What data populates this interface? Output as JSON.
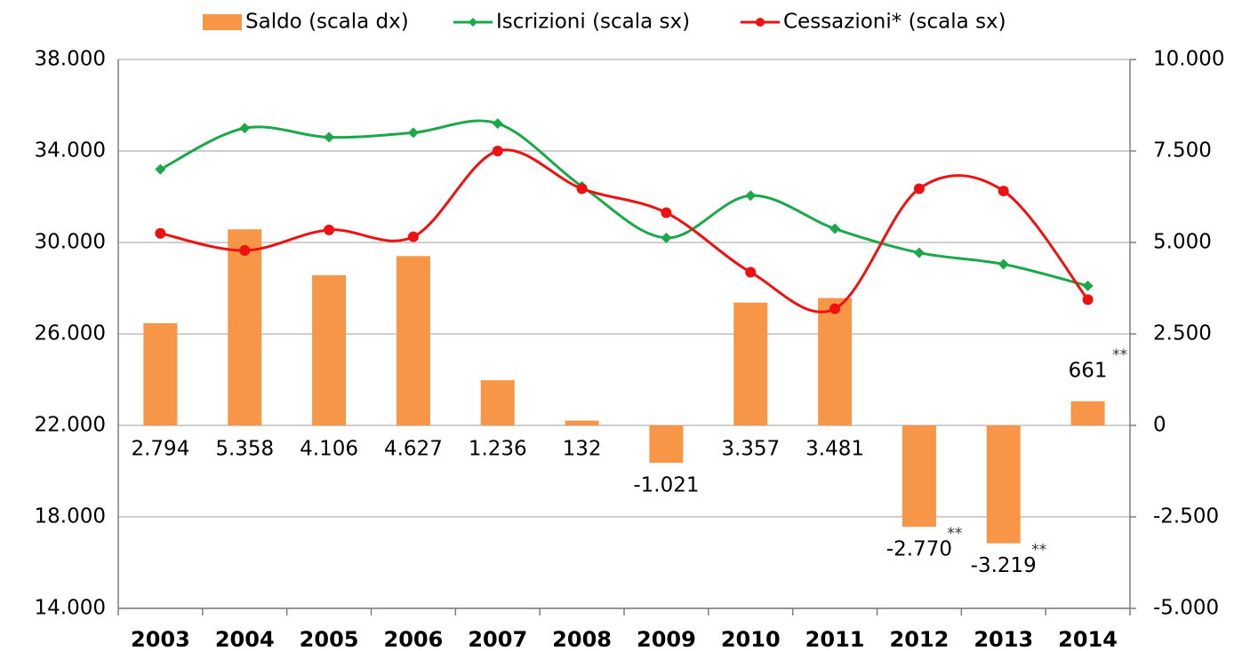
{
  "chart_data": {
    "type": "bar_line",
    "categories": [
      "2003",
      "2004",
      "2005",
      "2006",
      "2007",
      "2008",
      "2009",
      "2010",
      "2011",
      "2012",
      "2013",
      "2014"
    ],
    "series": [
      {
        "name": "Saldo (scala dx)",
        "type": "bar",
        "axis": "y2",
        "color": "#f79646",
        "values": [
          2794,
          5358,
          4106,
          4627,
          1236,
          132,
          -1021,
          3357,
          3481,
          -2770,
          -3219,
          661
        ],
        "value_labels": [
          "2.794",
          "5.358",
          "4.106",
          "4.627",
          "1.236",
          "132",
          "-1.021",
          "3.357",
          "3.481",
          "-2.770",
          "-3.219",
          "661"
        ],
        "value_notes": [
          null,
          null,
          null,
          null,
          null,
          null,
          null,
          null,
          null,
          "**",
          "**",
          "**"
        ]
      },
      {
        "name": "Iscrizioni (scala sx)",
        "type": "line",
        "marker": "diamond",
        "color": "#1aa84a",
        "values": [
          33200,
          35000,
          34600,
          34800,
          35200,
          32450,
          30200,
          32050,
          30600,
          29550,
          29050,
          28100
        ]
      },
      {
        "name": "Cessazioni* (scala sx)",
        "type": "line",
        "marker": "circle",
        "color": "#ee1111",
        "values": [
          30400,
          29650,
          30550,
          30250,
          34000,
          32350,
          31300,
          28700,
          27100,
          32350,
          32250,
          27500
        ]
      }
    ],
    "ylim": [
      14000,
      38000
    ],
    "yticks": [
      {
        "value": 14000,
        "label": "14.000"
      },
      {
        "value": 18000,
        "label": "18.000"
      },
      {
        "value": 22000,
        "label": "22.000"
      },
      {
        "value": 26000,
        "label": "26.000"
      },
      {
        "value": 30000,
        "label": "30.000"
      },
      {
        "value": 34000,
        "label": "34.000"
      },
      {
        "value": 38000,
        "label": "38.000"
      }
    ],
    "y2lim": [
      -5000,
      10000
    ],
    "y2ticks": [
      {
        "value": -5000,
        "label": "-5.000"
      },
      {
        "value": -2500,
        "label": "-2.500"
      },
      0,
      {
        "value": 2500,
        "label": "2.500"
      },
      {
        "value": 5000,
        "label": "5.000"
      },
      {
        "value": 7500,
        "label": "7.500"
      },
      {
        "value": 10000,
        "label": "10.000"
      }
    ],
    "grid": true,
    "legend": "top"
  }
}
